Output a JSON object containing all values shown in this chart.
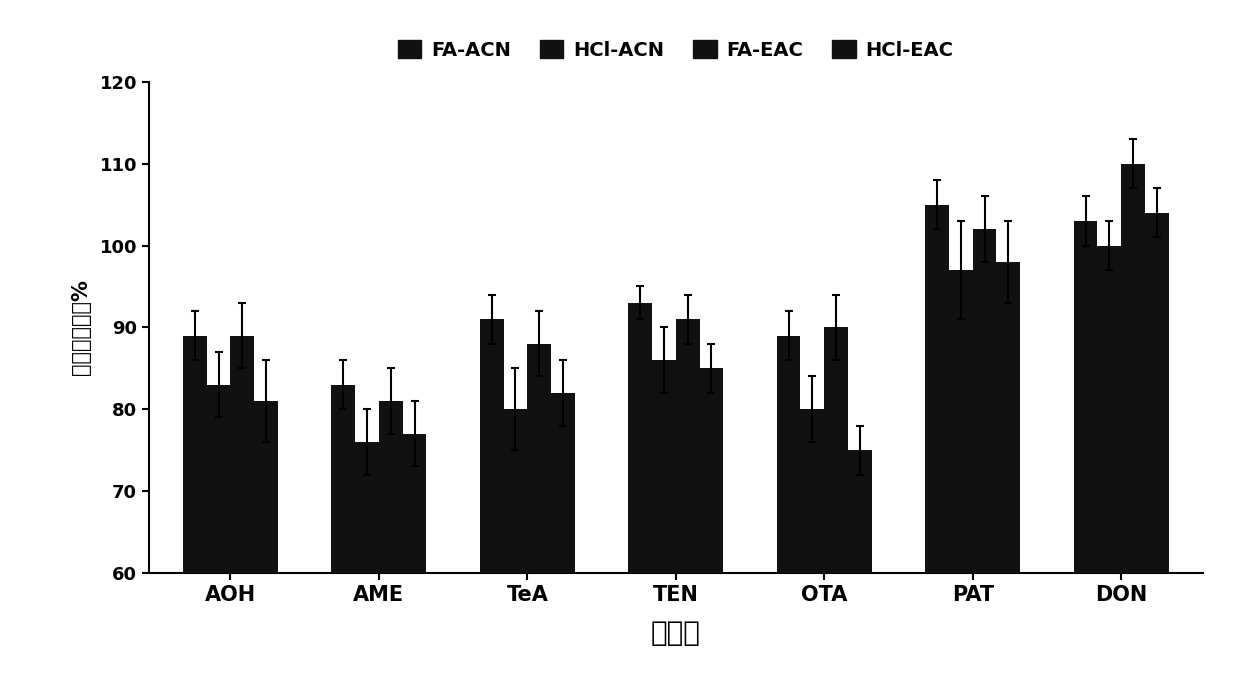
{
  "categories": [
    "AOH",
    "AME",
    "TeA",
    "TEN",
    "OTA",
    "PAT",
    "DON"
  ],
  "series_labels": [
    "FA-ACN",
    "HCl-ACN",
    "FA-EAC",
    "HCl-EAC"
  ],
  "bar_color": "#111111",
  "values": [
    [
      89,
      83,
      89,
      81
    ],
    [
      83,
      76,
      81,
      77
    ],
    [
      91,
      80,
      88,
      82
    ],
    [
      93,
      86,
      91,
      85
    ],
    [
      89,
      80,
      90,
      75
    ],
    [
      105,
      97,
      102,
      98
    ],
    [
      103,
      100,
      110,
      104
    ]
  ],
  "errors": [
    [
      3,
      4,
      4,
      5
    ],
    [
      3,
      4,
      4,
      4
    ],
    [
      3,
      5,
      4,
      4
    ],
    [
      2,
      4,
      3,
      3
    ],
    [
      3,
      4,
      4,
      3
    ],
    [
      3,
      6,
      4,
      5
    ],
    [
      3,
      3,
      3,
      3
    ]
  ],
  "ylabel": "提取回收率，%",
  "xlabel": "化合物",
  "ylim": [
    60,
    120
  ],
  "yticks": [
    60,
    70,
    80,
    90,
    100,
    110,
    120
  ],
  "background_color": "#ffffff",
  "bar_width": 0.16,
  "figsize": [
    12.4,
    6.82
  ],
  "dpi": 100
}
